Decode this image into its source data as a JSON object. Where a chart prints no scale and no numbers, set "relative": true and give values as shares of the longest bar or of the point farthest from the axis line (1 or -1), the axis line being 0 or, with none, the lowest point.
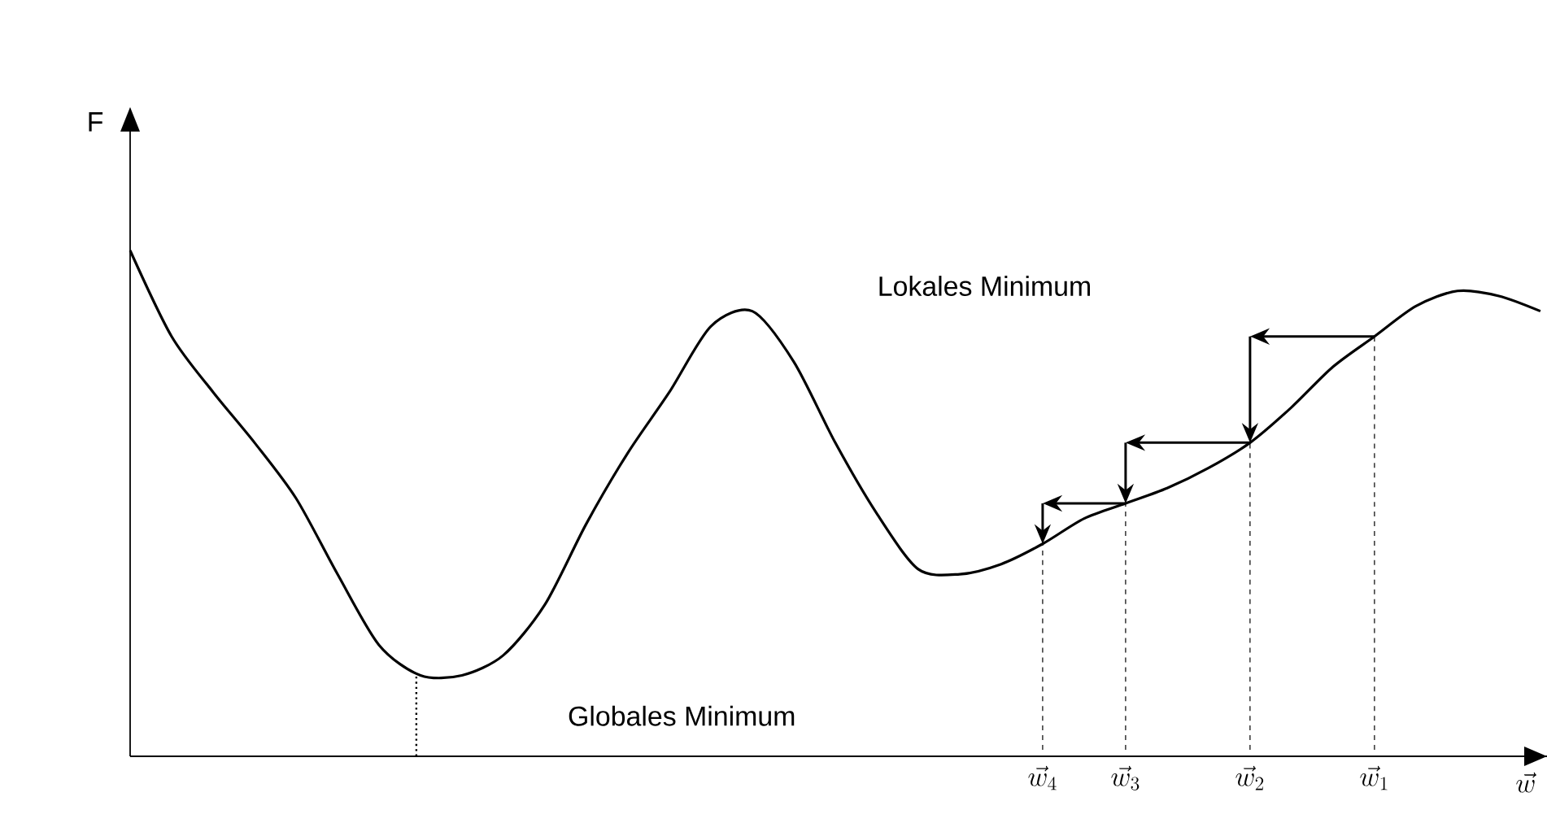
{
  "chart_data": {
    "type": "line",
    "relative": true,
    "ylabel": "F",
    "xlabel": "\\vec{w}",
    "categories": [
      null,
      null,
      null,
      null,
      null,
      null,
      null,
      null,
      null,
      null,
      null,
      null,
      null,
      null,
      null,
      null,
      null,
      null,
      null,
      null,
      null,
      null,
      "\\vec{w}_4",
      null,
      "\\vec{w}_3",
      null,
      null,
      "\\vec{w}_2",
      null,
      null,
      "\\vec{w}_1",
      null,
      null,
      null,
      null
    ],
    "series": [
      {
        "color": "#000000",
        "values": [
          1.0,
          0.83,
          0.72,
          0.62,
          0.51,
          0.36,
          0.22,
          0.16,
          0.16,
          0.2,
          0.3,
          0.46,
          0.6,
          0.72,
          0.85,
          0.88,
          0.78,
          0.62,
          0.48,
          0.37,
          0.36,
          0.38,
          0.42,
          0.47,
          0.5,
          0.53,
          0.57,
          0.62,
          0.69,
          0.77,
          0.83,
          0.89,
          0.92,
          0.91,
          0.88
        ]
      }
    ],
    "annotations": [
      "Lokales Minimum",
      "Globales Minimum"
    ],
    "marker": "none",
    "line_style": "solid"
  }
}
